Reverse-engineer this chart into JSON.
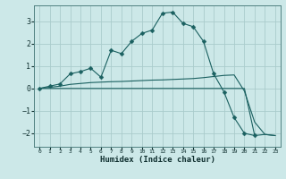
{
  "xlabel": "Humidex (Indice chaleur)",
  "background_color": "#cce8e8",
  "grid_color": "#aacccc",
  "line_color": "#1a6060",
  "xlim": [
    -0.5,
    23.5
  ],
  "ylim": [
    -2.6,
    3.7
  ],
  "yticks": [
    -2,
    -1,
    0,
    1,
    2,
    3
  ],
  "xticks": [
    0,
    1,
    2,
    3,
    4,
    5,
    6,
    7,
    8,
    9,
    10,
    11,
    12,
    13,
    14,
    15,
    16,
    17,
    18,
    19,
    20,
    21,
    22,
    23
  ],
  "series": [
    {
      "x": [
        0,
        1,
        2,
        3,
        4,
        5,
        6,
        7,
        8,
        9,
        10,
        11,
        12,
        13,
        14,
        15,
        16,
        17,
        18,
        19,
        20,
        21
      ],
      "y": [
        0.0,
        0.1,
        0.2,
        0.65,
        0.75,
        0.9,
        0.5,
        1.7,
        1.55,
        2.1,
        2.45,
        2.6,
        3.35,
        3.4,
        2.9,
        2.75,
        2.1,
        0.65,
        -0.15,
        -1.3,
        -2.0,
        -2.1
      ],
      "marker": true,
      "marker_size": 2.5
    },
    {
      "x": [
        0,
        1,
        2,
        3,
        4,
        5,
        6,
        7,
        8,
        9,
        10,
        11,
        12,
        13,
        14,
        15,
        16,
        17,
        18,
        19,
        20,
        21,
        22,
        23
      ],
      "y": [
        0.0,
        0.05,
        0.1,
        0.18,
        0.22,
        0.26,
        0.28,
        0.3,
        0.31,
        0.33,
        0.35,
        0.37,
        0.38,
        0.4,
        0.42,
        0.44,
        0.48,
        0.53,
        0.58,
        0.6,
        -0.12,
        -1.5,
        -2.05,
        -2.1
      ],
      "marker": false
    },
    {
      "x": [
        0,
        19,
        20,
        21,
        22,
        23
      ],
      "y": [
        0.0,
        0.0,
        0.0,
        -2.1,
        -2.05,
        -2.1
      ],
      "marker": false
    }
  ]
}
